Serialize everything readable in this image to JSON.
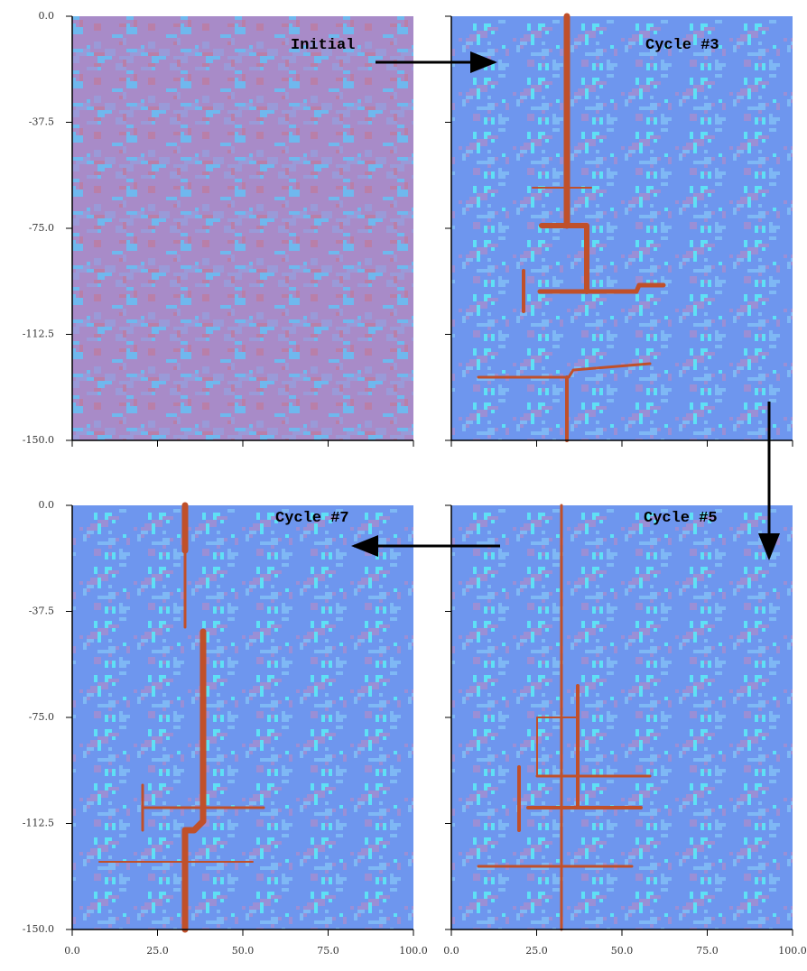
{
  "chart_data": {
    "type": "heatmap",
    "xlim": [
      0,
      100
    ],
    "ylim": [
      -150,
      0
    ],
    "xticks": [
      {
        "value": 0,
        "label": "0.0"
      },
      {
        "value": 25,
        "label": "25.0"
      },
      {
        "value": 50,
        "label": "50.0"
      },
      {
        "value": 75,
        "label": "75.0"
      },
      {
        "value": 100,
        "label": "100.0"
      }
    ],
    "yticks": [
      {
        "value": 0,
        "label": "0.0"
      },
      -37.5,
      {
        "value": -75,
        "label": "-75.0"
      },
      -112.5,
      {
        "value": -150,
        "label": "-150.0"
      }
    ],
    "panels": [
      {
        "title": "Initial"
      },
      {
        "title": "Cycle #3"
      },
      {
        "title": "Cycle #7"
      },
      {
        "title": "Cycle #5"
      }
    ]
  }
}
